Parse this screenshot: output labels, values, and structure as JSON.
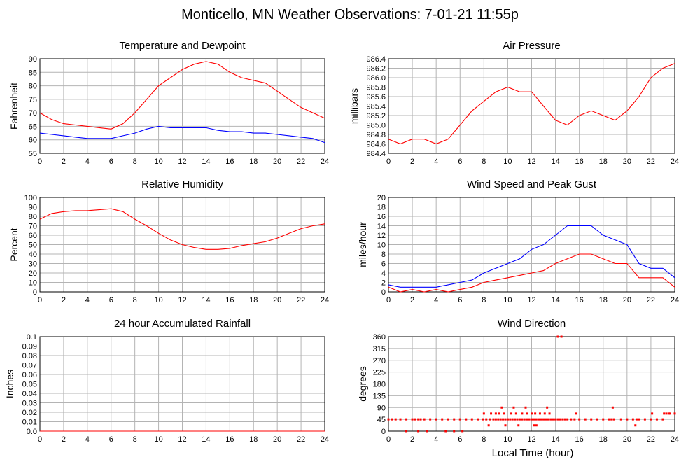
{
  "title": "Monticello, MN Weather Observations: 7-01-21 11:55p",
  "xlabel": "Local Time (hour)",
  "colors": {
    "primary": "#ff0000",
    "secondary": "#0000ff",
    "grid": "#b4b4b4"
  },
  "chart_data": [
    {
      "id": "temp",
      "type": "line",
      "title": "Temperature and Dewpoint",
      "ylabel": "Fahrenheit",
      "xlim": [
        0,
        24
      ],
      "ylim": [
        55,
        90
      ],
      "yticks": [
        "55",
        "60",
        "65",
        "70",
        "75",
        "80",
        "85",
        "90"
      ],
      "xticks": [
        "0",
        "2",
        "4",
        "6",
        "8",
        "10",
        "12",
        "14",
        "16",
        "18",
        "20",
        "22",
        "24"
      ],
      "grid": true,
      "series": [
        {
          "color": "#ff0000",
          "x": [
            0,
            1,
            2,
            3,
            4,
            5,
            6,
            7,
            8,
            9,
            10,
            11,
            12,
            13,
            14,
            15,
            16,
            17,
            18,
            19,
            20,
            21,
            22,
            23,
            24
          ],
          "values": [
            70,
            67.5,
            66,
            65.5,
            65,
            64.5,
            64,
            66,
            70,
            75,
            80,
            83,
            86,
            88,
            89,
            88,
            85,
            83,
            82,
            81,
            78,
            75,
            72,
            70,
            68
          ]
        },
        {
          "color": "#0000ff",
          "x": [
            0,
            1,
            2,
            3,
            4,
            5,
            6,
            7,
            8,
            9,
            10,
            11,
            12,
            13,
            14,
            15,
            16,
            17,
            18,
            19,
            20,
            21,
            22,
            23,
            24
          ],
          "values": [
            62.5,
            62,
            61.5,
            61,
            60.5,
            60.5,
            60.5,
            61.5,
            62.5,
            64,
            65,
            64.5,
            64.5,
            64.5,
            64.5,
            63.5,
            63,
            63,
            62.5,
            62.5,
            62,
            61.5,
            61,
            60.5,
            59
          ]
        }
      ]
    },
    {
      "id": "pressure",
      "type": "line",
      "title": "Air Pressure",
      "ylabel": "millibars",
      "xlim": [
        0,
        24
      ],
      "ylim": [
        984.4,
        986.4
      ],
      "yticks": [
        "984.4",
        "984.6",
        "984.8",
        "985.0",
        "985.2",
        "985.4",
        "985.6",
        "985.8",
        "986.0",
        "986.2",
        "986.4"
      ],
      "xticks": [
        "0",
        "2",
        "4",
        "6",
        "8",
        "10",
        "12",
        "14",
        "16",
        "18",
        "20",
        "22",
        "24"
      ],
      "grid": true,
      "series": [
        {
          "color": "#ff0000",
          "x": [
            0,
            1,
            2,
            3,
            4,
            5,
            6,
            7,
            8,
            9,
            10,
            11,
            12,
            13,
            14,
            15,
            16,
            17,
            18,
            19,
            20,
            21,
            22,
            23,
            24
          ],
          "values": [
            984.7,
            984.6,
            984.7,
            984.7,
            984.6,
            984.7,
            985.0,
            985.3,
            985.5,
            985.7,
            985.8,
            985.7,
            985.7,
            985.4,
            985.1,
            985.0,
            985.2,
            985.3,
            985.2,
            985.1,
            985.3,
            985.6,
            986.0,
            986.2,
            986.3
          ]
        }
      ]
    },
    {
      "id": "humidity",
      "type": "line",
      "title": "Relative Humidity",
      "ylabel": "Percent",
      "xlim": [
        0,
        24
      ],
      "ylim": [
        0,
        100
      ],
      "yticks": [
        "0",
        "10",
        "20",
        "30",
        "40",
        "50",
        "60",
        "70",
        "80",
        "90",
        "100"
      ],
      "xticks": [
        "0",
        "2",
        "4",
        "6",
        "8",
        "10",
        "12",
        "14",
        "16",
        "18",
        "20",
        "22",
        "24"
      ],
      "grid": true,
      "series": [
        {
          "color": "#ff0000",
          "x": [
            0,
            1,
            2,
            3,
            4,
            5,
            6,
            7,
            8,
            9,
            10,
            11,
            12,
            13,
            14,
            15,
            16,
            17,
            18,
            19,
            20,
            21,
            22,
            23,
            24
          ],
          "values": [
            77,
            83,
            85,
            86,
            86,
            87,
            88,
            85,
            77,
            70,
            62,
            55,
            50,
            47,
            45,
            45,
            46,
            49,
            51,
            53,
            57,
            62,
            67,
            70,
            72
          ]
        }
      ]
    },
    {
      "id": "wind",
      "type": "line",
      "title": "Wind Speed and Peak Gust",
      "ylabel": "miles/hour",
      "xlim": [
        0,
        24
      ],
      "ylim": [
        0,
        20
      ],
      "yticks": [
        "0",
        "2",
        "4",
        "6",
        "8",
        "10",
        "12",
        "14",
        "16",
        "18",
        "20"
      ],
      "xticks": [
        "0",
        "2",
        "4",
        "6",
        "8",
        "10",
        "12",
        "14",
        "16",
        "18",
        "20",
        "22",
        "24"
      ],
      "grid": true,
      "series": [
        {
          "color": "#ff0000",
          "x": [
            0,
            1,
            2,
            3,
            4,
            5,
            6,
            7,
            8,
            9,
            10,
            11,
            12,
            13,
            14,
            15,
            16,
            17,
            18,
            19,
            20,
            21,
            22,
            23,
            24
          ],
          "values": [
            1,
            0,
            0.5,
            0,
            0.5,
            0,
            0.5,
            1,
            2,
            2.5,
            3,
            3.5,
            4,
            4.5,
            6,
            7,
            8,
            8,
            7,
            6,
            6,
            3,
            3,
            3,
            1
          ]
        },
        {
          "color": "#0000ff",
          "x": [
            0,
            1,
            2,
            3,
            4,
            5,
            6,
            7,
            8,
            9,
            10,
            11,
            12,
            13,
            14,
            15,
            16,
            17,
            18,
            19,
            20,
            21,
            22,
            23,
            24
          ],
          "values": [
            1.5,
            1,
            1,
            1,
            1,
            1.5,
            2,
            2.5,
            4,
            5,
            6,
            7,
            9,
            10,
            12,
            14,
            14,
            14,
            12,
            11,
            10,
            6,
            5,
            5,
            3
          ]
        }
      ]
    },
    {
      "id": "rain",
      "type": "line",
      "title": "24 hour Accumulated Rainfall",
      "ylabel": "Inches",
      "xlim": [
        0,
        24
      ],
      "ylim": [
        0,
        0.1
      ],
      "yticks": [
        "0.0",
        "0.01",
        "0.02",
        "0.03",
        "0.04",
        "0.05",
        "0.06",
        "0.07",
        "0.08",
        "0.09",
        "0.1"
      ],
      "xticks": [
        "0",
        "2",
        "4",
        "6",
        "8",
        "10",
        "12",
        "14",
        "16",
        "18",
        "20",
        "22",
        "24"
      ],
      "grid": true,
      "series": [
        {
          "color": "#ff0000",
          "x": [
            0,
            24
          ],
          "values": [
            0,
            0
          ]
        }
      ]
    },
    {
      "id": "direction",
      "type": "scatter",
      "title": "Wind Direction",
      "ylabel": "degrees",
      "xlim": [
        0,
        24
      ],
      "ylim": [
        0,
        360
      ],
      "yticks": [
        "0",
        "45",
        "90",
        "135",
        "180",
        "225",
        "270",
        "315",
        "360"
      ],
      "xticks": [
        "0",
        "2",
        "4",
        "6",
        "8",
        "10",
        "12",
        "14",
        "16",
        "18",
        "20",
        "22",
        "24"
      ],
      "grid": true,
      "series": [
        {
          "color": "#ff0000",
          "x": [
            0,
            0.3,
            0.6,
            1,
            1.5,
            2,
            2.2,
            2.5,
            2.7,
            3,
            3.5,
            4,
            4.5,
            5,
            5.5,
            6,
            6.5,
            7,
            7.5,
            7.9,
            8.2,
            8.5,
            8.8,
            9.0,
            9.2,
            9.4,
            9.6,
            9.8,
            10.0,
            10.2,
            10.4,
            10.6,
            10.8,
            11.0,
            11.2,
            11.4,
            11.6,
            11.8,
            12.0,
            12.2,
            12.4,
            12.6,
            12.8,
            13.0,
            13.2,
            13.4,
            13.6,
            13.8,
            14.0,
            14.2,
            14.4,
            14.6,
            14.8,
            15.0,
            15.3,
            15.6,
            16.0,
            16.5,
            17.0,
            17.5,
            18.0,
            18.5,
            18.7,
            18.9,
            19.5,
            20.0,
            20.5,
            20.8,
            21.0,
            21.5,
            22.0,
            22.5,
            23.0,
            23.3,
            23.6,
            24.0,
            1.5,
            2.5,
            3.2,
            4.8,
            5.5,
            6.2,
            8.0,
            8.6,
            9.0,
            9.3,
            9.7,
            10.3,
            10.7,
            11.2,
            11.6,
            12.0,
            12.3,
            12.7,
            13.1,
            13.5,
            9.5,
            10.5,
            11.5,
            8.4,
            9.8,
            10.9,
            12.2,
            14.2,
            14.5,
            15.7,
            18.8,
            22.1,
            23.1,
            23.5,
            20.7,
            12.4,
            13.3
          ],
          "values": [
            45,
            45,
            45,
            45,
            45,
            45,
            45,
            45,
            45,
            45,
            45,
            45,
            45,
            45,
            45,
            45,
            45,
            45,
            45,
            45,
            45,
            45,
            45,
            45,
            45,
            45,
            45,
            45,
            45,
            45,
            45,
            45,
            45,
            45,
            45,
            45,
            45,
            45,
            45,
            45,
            45,
            45,
            45,
            45,
            45,
            45,
            45,
            45,
            45,
            45,
            45,
            45,
            45,
            45,
            45,
            45,
            45,
            45,
            45,
            45,
            45,
            45,
            45,
            45,
            45,
            45,
            45,
            45,
            45,
            45,
            45,
            45,
            45,
            67,
            67,
            67,
            0,
            0,
            0,
            0,
            0,
            0,
            67,
            67,
            67,
            67,
            67,
            67,
            67,
            67,
            67,
            67,
            67,
            67,
            67,
            67,
            90,
            90,
            90,
            22,
            22,
            22,
            22,
            360,
            360,
            67,
            90,
            67,
            67,
            67,
            22,
            22,
            90
          ]
        }
      ]
    }
  ]
}
